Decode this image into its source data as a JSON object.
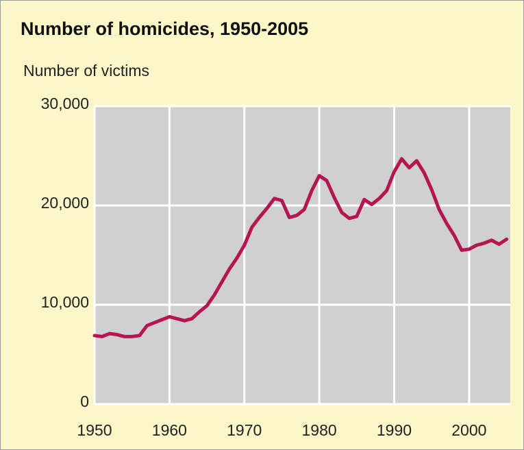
{
  "chart_data": {
    "type": "line",
    "title": "Number of homicides, 1950-2005",
    "y_label": "Number of victims",
    "x": [
      1950,
      1951,
      1952,
      1953,
      1954,
      1955,
      1956,
      1957,
      1958,
      1959,
      1960,
      1961,
      1962,
      1963,
      1964,
      1965,
      1966,
      1967,
      1968,
      1969,
      1970,
      1971,
      1972,
      1973,
      1974,
      1975,
      1976,
      1977,
      1978,
      1979,
      1980,
      1981,
      1982,
      1983,
      1984,
      1985,
      1986,
      1987,
      1988,
      1989,
      1990,
      1991,
      1992,
      1993,
      1994,
      1995,
      1996,
      1997,
      1998,
      1999,
      2000,
      2001,
      2002,
      2003,
      2004,
      2005
    ],
    "series": [
      {
        "name": "Homicides",
        "color": "#b5164f",
        "values": [
          6900,
          6800,
          7100,
          7000,
          6800,
          6800,
          6900,
          7900,
          8200,
          8500,
          8800,
          8600,
          8400,
          8600,
          9300,
          9900,
          11000,
          12300,
          13600,
          14700,
          16000,
          17800,
          18800,
          19700,
          20700,
          20500,
          18800,
          19000,
          19600,
          21500,
          23000,
          22500,
          20800,
          19300,
          18700,
          18900,
          20600,
          20100,
          20700,
          21500,
          23400,
          24700,
          23800,
          24500,
          23300,
          21600,
          19600,
          18200,
          17000,
          15500,
          15600,
          16000,
          16200,
          16500,
          16100,
          16600
        ]
      }
    ],
    "xlim": [
      1950,
      2005.5
    ],
    "ylim": [
      0,
      30000
    ],
    "xticks": [
      1950,
      1960,
      1970,
      1980,
      1990,
      2000
    ],
    "yticks": [
      0,
      {
        "value": 10000,
        "label": "10,000"
      },
      {
        "value": 20000,
        "label": "20,000"
      },
      {
        "value": 30000,
        "label": "30,000"
      }
    ],
    "grid": true
  }
}
